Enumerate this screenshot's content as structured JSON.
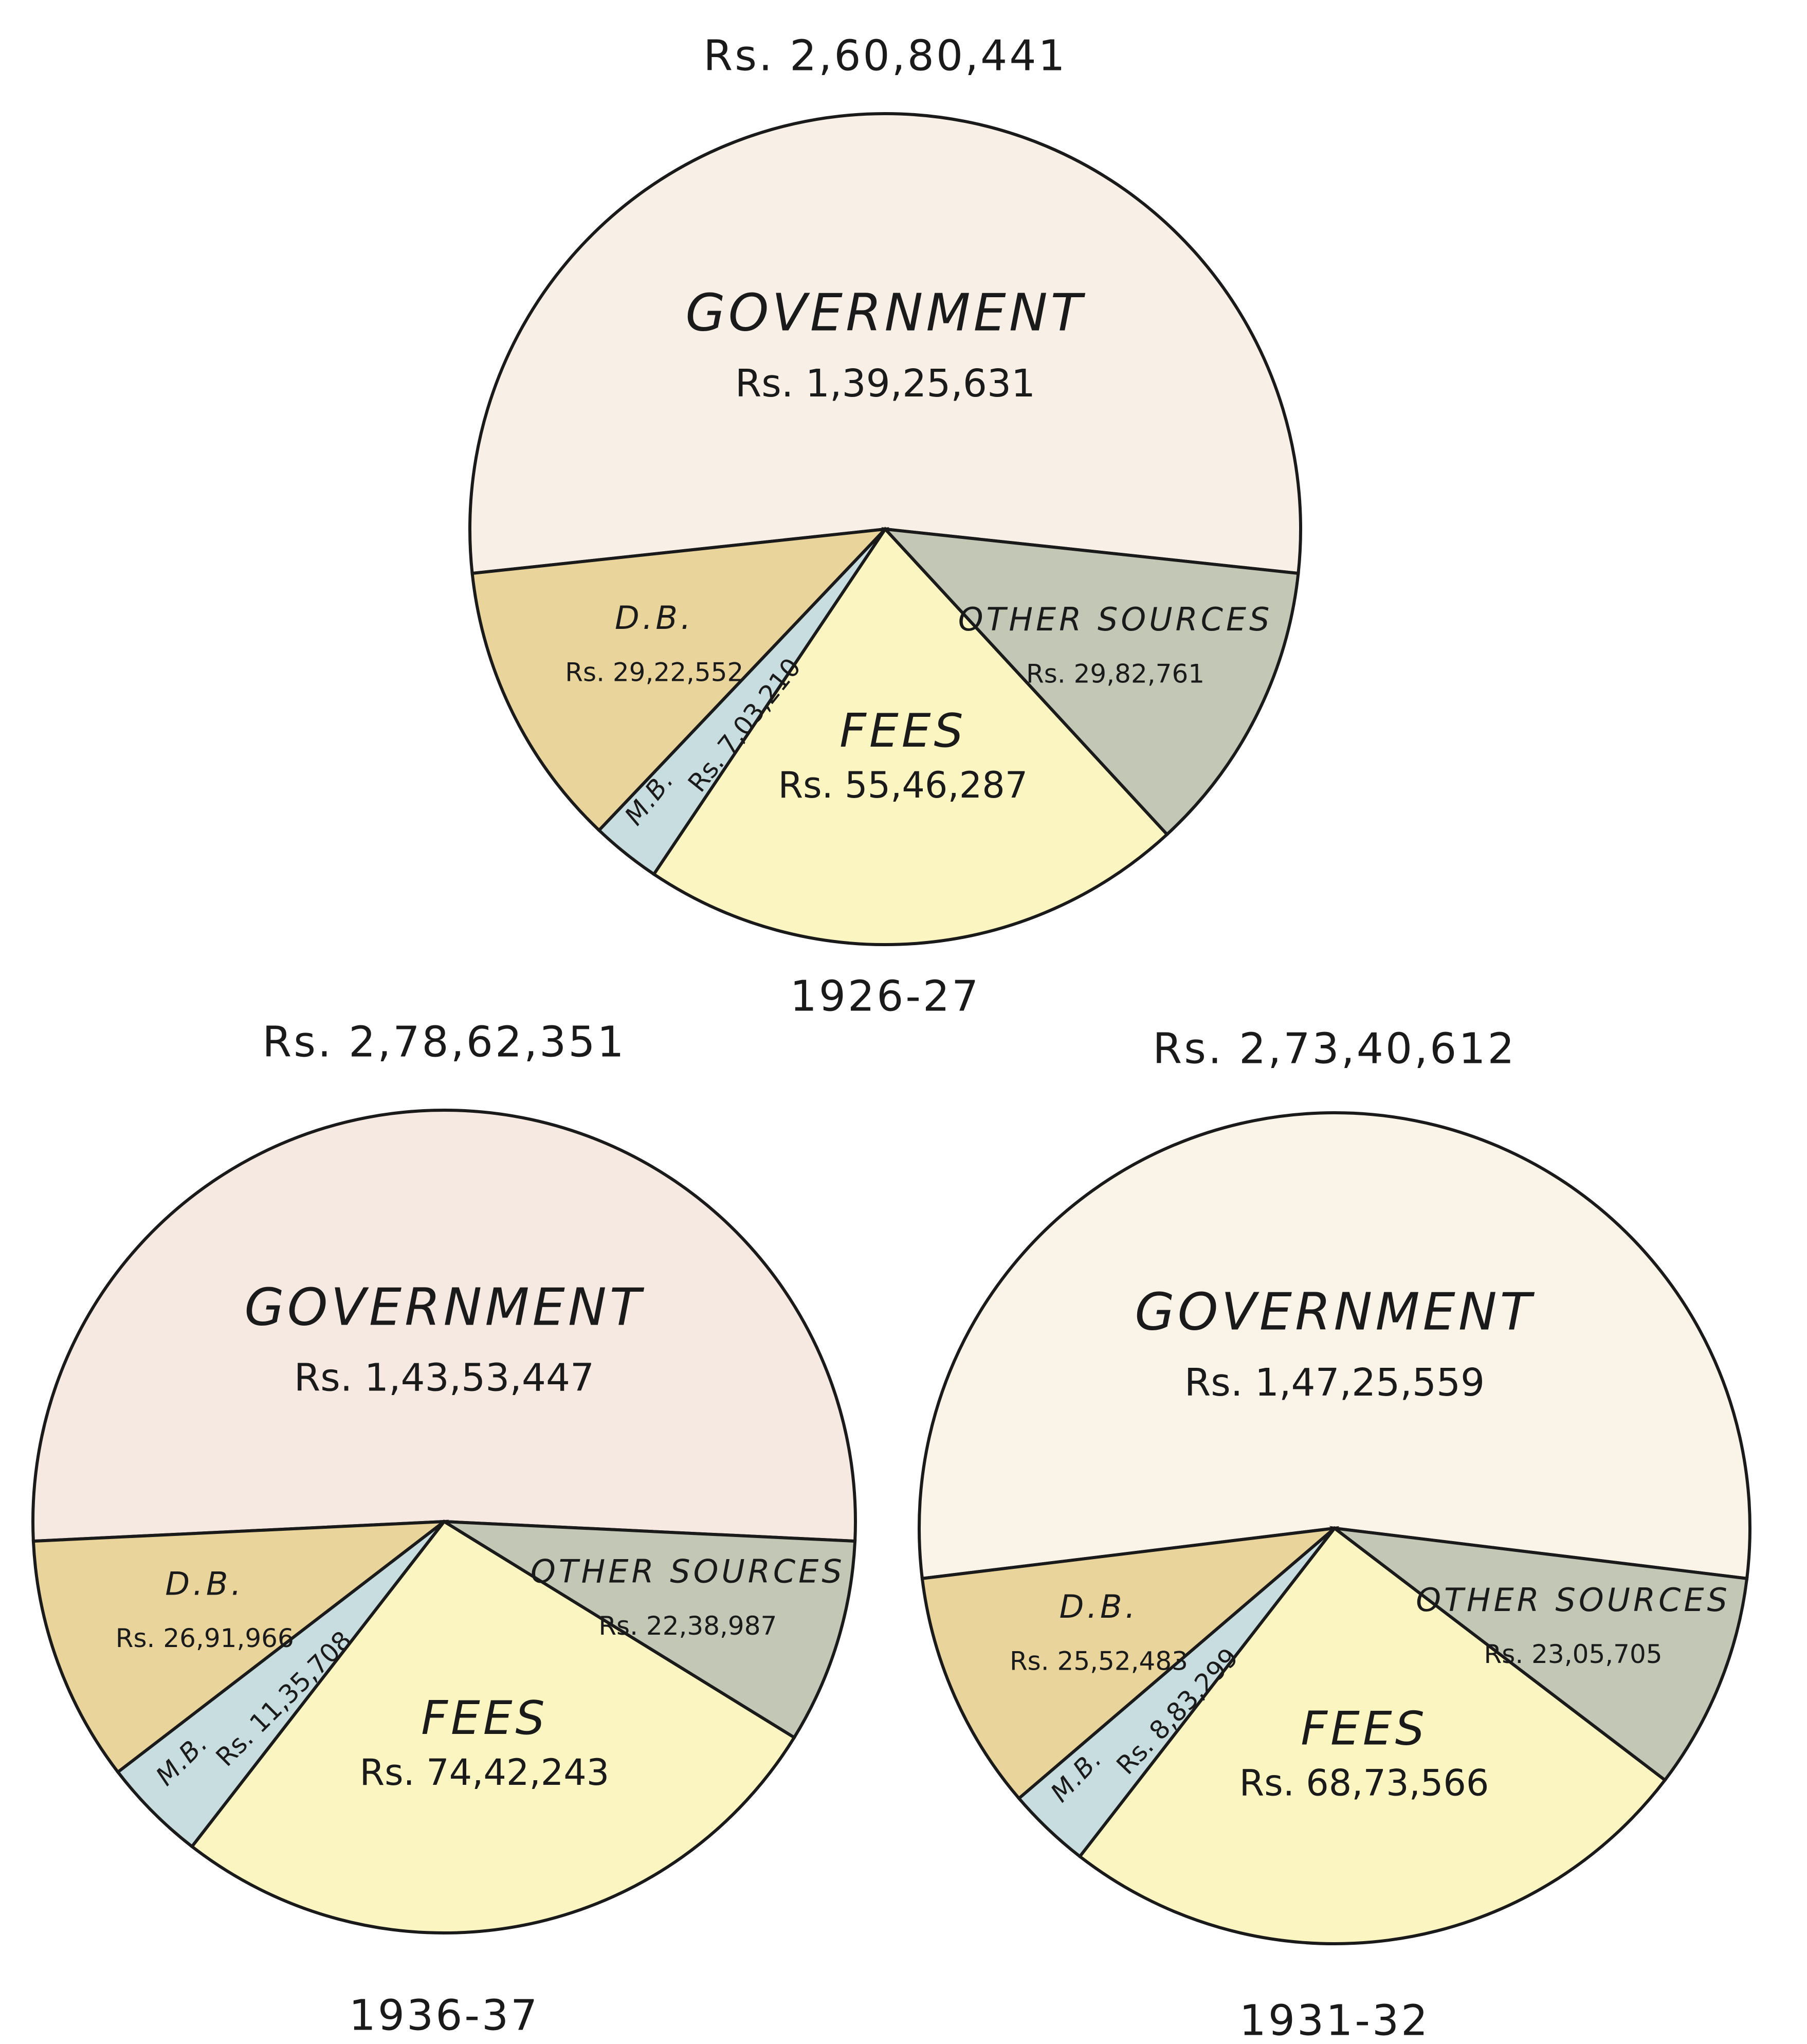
{
  "chart_data": [
    {
      "type": "pie",
      "title": "Rs. 2,60,80,441",
      "subtitle": "1926-27",
      "categories": [
        "GOVERNMENT",
        "D.B.",
        "M.B.",
        "FEES",
        "OTHER SOURCES"
      ],
      "values": [
        13925631,
        2922552,
        703210,
        5546287,
        2982761
      ],
      "value_labels": [
        "Rs. 1,39,25,631",
        "Rs. 29,22,552",
        "Rs. 7,03,210",
        "Rs. 55,46,287",
        "Rs. 29,82,761"
      ],
      "colors": [
        "#f8f0e6",
        "#e9d59c",
        "#c8dde0",
        "#fbf5c2",
        "#c3c7b5"
      ]
    },
    {
      "type": "pie",
      "title": "Rs. 2,78,62,351",
      "subtitle": "1936-37",
      "categories": [
        "GOVERNMENT",
        "D.B.",
        "M.B.",
        "FEES",
        "OTHER SOURCES"
      ],
      "values": [
        14353447,
        2691966,
        1135708,
        7442243,
        2238987
      ],
      "value_labels": [
        "Rs. 1,43,53,447",
        "Rs. 26,91,966",
        "Rs. 11,35,708",
        "Rs. 74,42,243",
        "Rs. 22,38,987"
      ],
      "colors": [
        "#f5e9e2",
        "#e9d59c",
        "#c8dde0",
        "#fbf5c2",
        "#c3c7b5"
      ]
    },
    {
      "type": "pie",
      "title": "Rs. 2,73,40,612",
      "subtitle": "1931-32",
      "categories": [
        "GOVERNMENT",
        "D.B.",
        "M.B.",
        "FEES",
        "OTHER SOURCES"
      ],
      "values": [
        14725559,
        2552483,
        883299,
        6873566,
        2305705
      ],
      "value_labels": [
        "Rs. 1,47,25,559",
        "Rs. 25,52,483",
        "Rs. 8,83,299",
        "Rs. 68,73,566",
        "Rs. 23,05,705"
      ],
      "colors": [
        "#f9f3e8",
        "#e9d59c",
        "#c8dde0",
        "#fbf5c2",
        "#c3c7b5"
      ]
    }
  ]
}
